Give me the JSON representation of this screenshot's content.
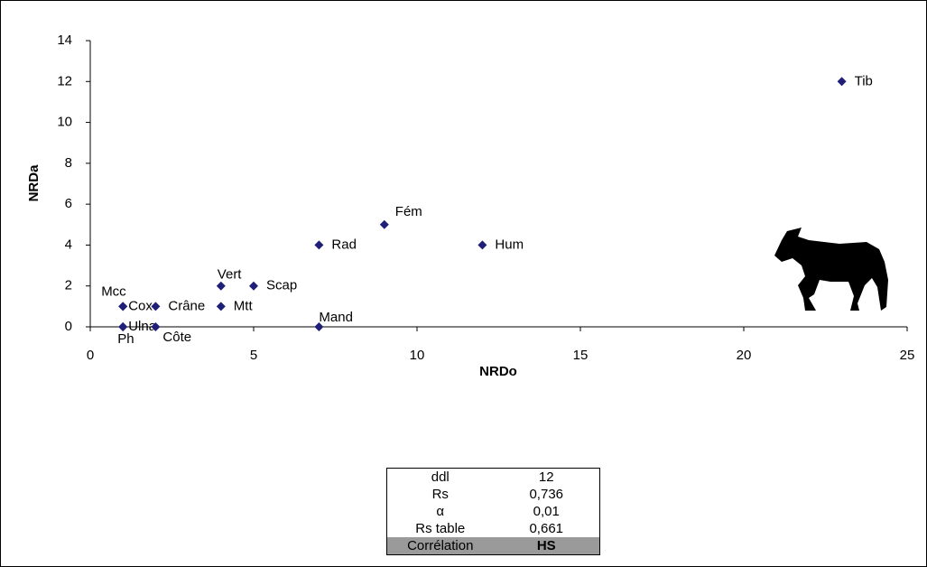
{
  "chart_data": {
    "type": "scatter",
    "x_label": "NRDo",
    "y_label": "NRDa",
    "point_labels": [
      "Tib",
      "Fém",
      "Rad",
      "Hum",
      "Vert",
      "Scap",
      "Mcc",
      "Cox",
      "Crâne",
      "Mtt",
      "Ph",
      "Ulna",
      "Côte",
      "Mand"
    ],
    "x": [
      23,
      9,
      7,
      12,
      4,
      5,
      1,
      1,
      2,
      4,
      1,
      1,
      2,
      7
    ],
    "values": [
      12,
      5,
      4,
      4,
      2,
      2,
      1,
      1,
      1,
      1,
      0,
      0,
      0,
      0
    ],
    "color": "#1f1f78",
    "xlim": [
      0,
      25
    ],
    "xticks": [
      0,
      5,
      10,
      15,
      20,
      25
    ],
    "ylim": [
      0,
      14
    ],
    "yticks": [
      0,
      2,
      4,
      6,
      8,
      10,
      12,
      14
    ]
  },
  "table": {
    "rows": [
      [
        "ddl",
        "12"
      ],
      [
        "Rs",
        "0,736"
      ],
      [
        "α",
        "0,01"
      ],
      [
        "Rs table",
        "0,661"
      ],
      [
        "Corrélation",
        "HS"
      ]
    ]
  }
}
